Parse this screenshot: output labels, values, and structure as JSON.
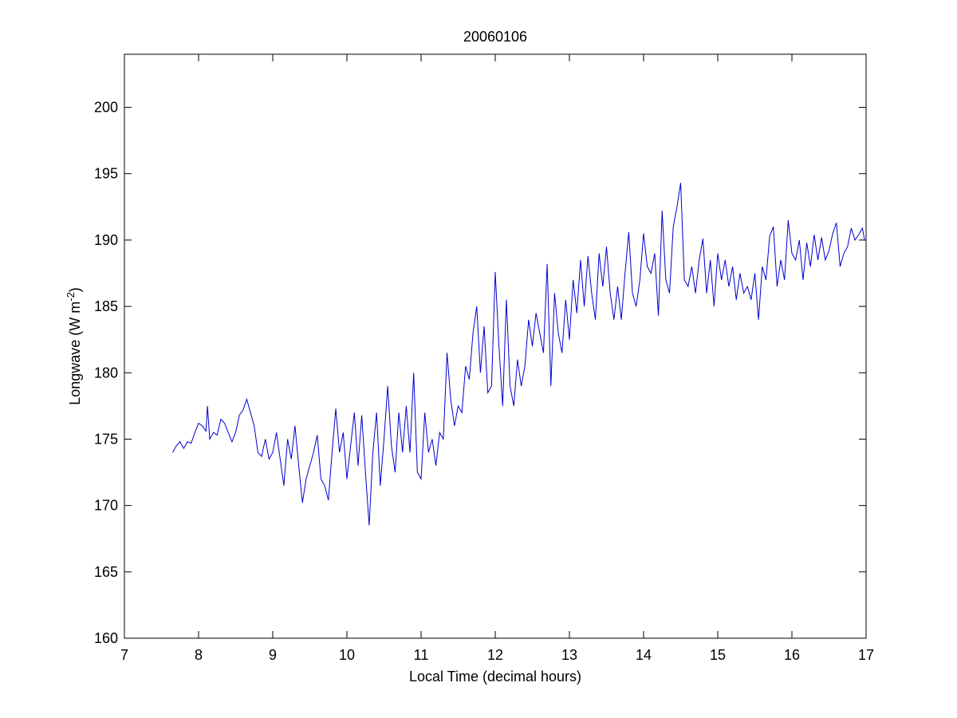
{
  "chart_data": {
    "type": "line",
    "title": "20060106",
    "xlabel": "Local Time (decimal hours)",
    "ylabel_parts": [
      "Longwave (W m",
      "-2",
      ")"
    ],
    "xlim": [
      7,
      17
    ],
    "xticks": [
      7,
      8,
      9,
      10,
      11,
      12,
      13,
      14,
      15,
      16,
      17
    ],
    "ylim": [
      160,
      204
    ],
    "yticks": [
      160,
      165,
      170,
      175,
      180,
      185,
      190,
      195,
      200
    ],
    "grid": false,
    "x": [
      7.65,
      7.7,
      7.75,
      7.8,
      7.85,
      7.9,
      7.95,
      8.0,
      8.05,
      8.1,
      8.12,
      8.15,
      8.2,
      8.25,
      8.3,
      8.35,
      8.4,
      8.45,
      8.5,
      8.55,
      8.6,
      8.65,
      8.7,
      8.75,
      8.8,
      8.85,
      8.9,
      8.95,
      9.0,
      9.05,
      9.1,
      9.15,
      9.2,
      9.25,
      9.3,
      9.35,
      9.4,
      9.45,
      9.5,
      9.55,
      9.6,
      9.65,
      9.7,
      9.75,
      9.8,
      9.85,
      9.9,
      9.95,
      10.0,
      10.05,
      10.1,
      10.15,
      10.2,
      10.25,
      10.3,
      10.35,
      10.4,
      10.45,
      10.5,
      10.55,
      10.6,
      10.65,
      10.7,
      10.75,
      10.8,
      10.85,
      10.9,
      10.95,
      11.0,
      11.05,
      11.1,
      11.15,
      11.2,
      11.25,
      11.3,
      11.35,
      11.4,
      11.45,
      11.5,
      11.55,
      11.6,
      11.65,
      11.7,
      11.75,
      11.8,
      11.85,
      11.9,
      11.95,
      12.0,
      12.05,
      12.1,
      12.15,
      12.2,
      12.25,
      12.3,
      12.35,
      12.4,
      12.45,
      12.5,
      12.55,
      12.6,
      12.65,
      12.7,
      12.75,
      12.8,
      12.85,
      12.9,
      12.95,
      13.0,
      13.05,
      13.1,
      13.15,
      13.2,
      13.25,
      13.3,
      13.35,
      13.4,
      13.45,
      13.5,
      13.55,
      13.6,
      13.65,
      13.7,
      13.75,
      13.8,
      13.85,
      13.9,
      13.95,
      14.0,
      14.05,
      14.1,
      14.15,
      14.2,
      14.25,
      14.3,
      14.35,
      14.4,
      14.45,
      14.5,
      14.55,
      14.6,
      14.65,
      14.7,
      14.75,
      14.8,
      14.85,
      14.9,
      14.95,
      15.0,
      15.05,
      15.1,
      15.15,
      15.2,
      15.25,
      15.3,
      15.35,
      15.4,
      15.45,
      15.5,
      15.55,
      15.6,
      15.65,
      15.7,
      15.75,
      15.8,
      15.85,
      15.9,
      15.95,
      16.0,
      16.05,
      16.1,
      16.15,
      16.2,
      16.25,
      16.3,
      16.35,
      16.4,
      16.45,
      16.5,
      16.55,
      16.6,
      16.65,
      16.7,
      16.75,
      16.8,
      16.85,
      16.9,
      16.95,
      16.98
    ],
    "series": [
      {
        "color": "#0000d0",
        "values": [
          174,
          174.5,
          174.8,
          174.3,
          174.8,
          174.7,
          175.5,
          176.2,
          176,
          175.6,
          177.5,
          175,
          175.5,
          175.3,
          176.5,
          176.2,
          175.5,
          174.8,
          175.5,
          176.8,
          177.2,
          178,
          177,
          176,
          174,
          173.7,
          175,
          173.5,
          174,
          175.5,
          173.5,
          171.5,
          175,
          173.5,
          176,
          173,
          170.2,
          172,
          173,
          174,
          175.3,
          172,
          171.5,
          170.4,
          174,
          177.3,
          174,
          175.5,
          172,
          174.5,
          177,
          173,
          176.8,
          172.5,
          168.5,
          174,
          177,
          171.5,
          175,
          179,
          174.5,
          172.5,
          177,
          174,
          177.5,
          174,
          180,
          172.5,
          172,
          177,
          174,
          175,
          173,
          175.5,
          175,
          181.5,
          178,
          176,
          177.5,
          177,
          180.5,
          179.5,
          183,
          185,
          180,
          183.5,
          178.5,
          179,
          187.6,
          182,
          177.5,
          185.5,
          179,
          177.5,
          181,
          179,
          180.5,
          184,
          182,
          184.5,
          183,
          181.5,
          188.2,
          179,
          186,
          183,
          181.5,
          185.5,
          182.5,
          187,
          184.5,
          188.5,
          185,
          188.8,
          186,
          184,
          189,
          186.5,
          189.5,
          186,
          184,
          186.5,
          184,
          187.5,
          190.6,
          186,
          185,
          187,
          190.5,
          188,
          187.5,
          189,
          184.3,
          192.2,
          187,
          186,
          191,
          192.5,
          194.3,
          187,
          186.5,
          188,
          186,
          188.5,
          190.1,
          186,
          188.5,
          185,
          189,
          187,
          188.5,
          186.5,
          188,
          185.5,
          187.5,
          186,
          186.5,
          185.5,
          187.5,
          184,
          188,
          187,
          190.3,
          191,
          186.5,
          188.5,
          187,
          191.5,
          189,
          188.5,
          190,
          187,
          189.8,
          188,
          190.4,
          188.5,
          190.2,
          188.5,
          189.2,
          190.5,
          191.3,
          188,
          189,
          189.5,
          190.9,
          190,
          190.4,
          190.9,
          190
        ]
      }
    ]
  }
}
